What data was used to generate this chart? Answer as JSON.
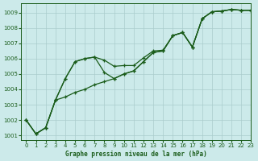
{
  "title": "Graphe pression niveau de la mer (hPa)",
  "bg_color": "#cceaea",
  "grid_color": "#aacccc",
  "line_color": "#1a5c1a",
  "xlim": [
    -0.5,
    23
  ],
  "ylim": [
    1000.7,
    1009.6
  ],
  "yticks": [
    1001,
    1002,
    1003,
    1004,
    1005,
    1006,
    1007,
    1008,
    1009
  ],
  "xticks": [
    0,
    1,
    2,
    3,
    4,
    5,
    6,
    7,
    8,
    9,
    10,
    11,
    12,
    13,
    14,
    15,
    16,
    17,
    18,
    19,
    20,
    21,
    22,
    23
  ],
  "s1_x": [
    0,
    1,
    2,
    3,
    4,
    5,
    6,
    7,
    8,
    9,
    10,
    11,
    12,
    13,
    14,
    15,
    16,
    17,
    18,
    19,
    20,
    21,
    22,
    23
  ],
  "s1_y": [
    1002.0,
    1001.1,
    1001.5,
    1003.3,
    1004.7,
    1005.8,
    1006.0,
    1006.1,
    1005.9,
    1005.5,
    1005.55,
    1005.55,
    1006.05,
    1006.5,
    1006.55,
    1007.5,
    1007.7,
    1006.75,
    1008.6,
    1009.05,
    1009.1,
    1009.2,
    1009.15,
    1009.15
  ],
  "s2_x": [
    0,
    1,
    2,
    3,
    4,
    5,
    6,
    7,
    8,
    9,
    10,
    11,
    12,
    13,
    14,
    15,
    16,
    17,
    18,
    19,
    20,
    21,
    22,
    23
  ],
  "s2_y": [
    1002.0,
    1001.1,
    1001.5,
    1003.3,
    1004.7,
    1005.8,
    1006.0,
    1006.1,
    1005.1,
    1004.7,
    1005.0,
    1005.2,
    1005.8,
    1006.4,
    1006.5,
    1007.5,
    1007.7,
    1006.75,
    1008.6,
    1009.05,
    1009.1,
    1009.2,
    1009.15,
    1009.15
  ],
  "s3_x": [
    0,
    1,
    2,
    3,
    4,
    5,
    6,
    7,
    8,
    9,
    10,
    11,
    12,
    13,
    14,
    15,
    16,
    17,
    18,
    19,
    20,
    21,
    22,
    23
  ],
  "s3_y": [
    1002.0,
    1001.1,
    1001.5,
    1003.3,
    1003.5,
    1003.8,
    1004.0,
    1004.3,
    1004.5,
    1004.7,
    1005.0,
    1005.2,
    1005.8,
    1006.4,
    1006.5,
    1007.5,
    1007.7,
    1006.75,
    1008.6,
    1009.05,
    1009.1,
    1009.2,
    1009.15,
    1009.15
  ]
}
